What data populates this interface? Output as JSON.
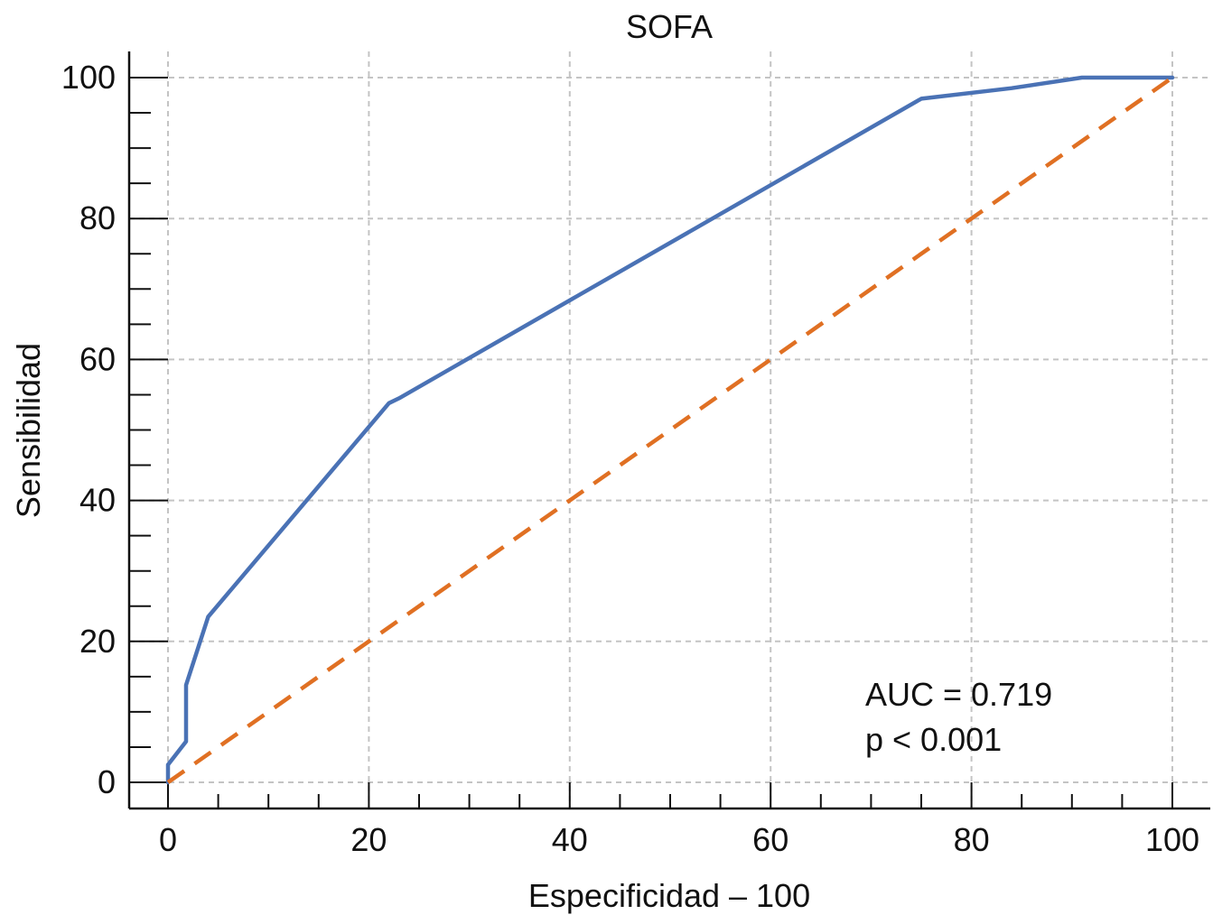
{
  "chart_data": {
    "type": "line",
    "title": "SOFA",
    "xlabel": "Especificidad – 100",
    "ylabel": "Sensibilidad",
    "xlim": [
      0,
      100
    ],
    "ylim": [
      0,
      100
    ],
    "x_ticks": [
      0,
      20,
      40,
      60,
      80,
      100
    ],
    "y_ticks": [
      0,
      20,
      40,
      60,
      80,
      100
    ],
    "x_ticks_minor": [
      5,
      10,
      15,
      25,
      30,
      35,
      45,
      50,
      55,
      65,
      70,
      75,
      85,
      90,
      95
    ],
    "y_ticks_minor": [
      5,
      10,
      15,
      25,
      30,
      35,
      45,
      50,
      55,
      65,
      70,
      75,
      85,
      90,
      95
    ],
    "grid": true,
    "series": [
      {
        "kind": "roc",
        "color": "#4a72b5",
        "style": "solid",
        "x": [
          0,
          0,
          1.8,
          1.8,
          4,
          22,
          23,
          75,
          84,
          91,
          100
        ],
        "y": [
          0,
          2.5,
          5.8,
          13.8,
          23.5,
          53.8,
          54.5,
          97,
          98.5,
          100,
          100
        ]
      },
      {
        "kind": "reference",
        "color": "#e07023",
        "style": "dashed",
        "x": [
          0,
          100
        ],
        "y": [
          0,
          100
        ]
      }
    ],
    "annotations": [
      "AUC = 0.719",
      "p < 0.001"
    ]
  }
}
